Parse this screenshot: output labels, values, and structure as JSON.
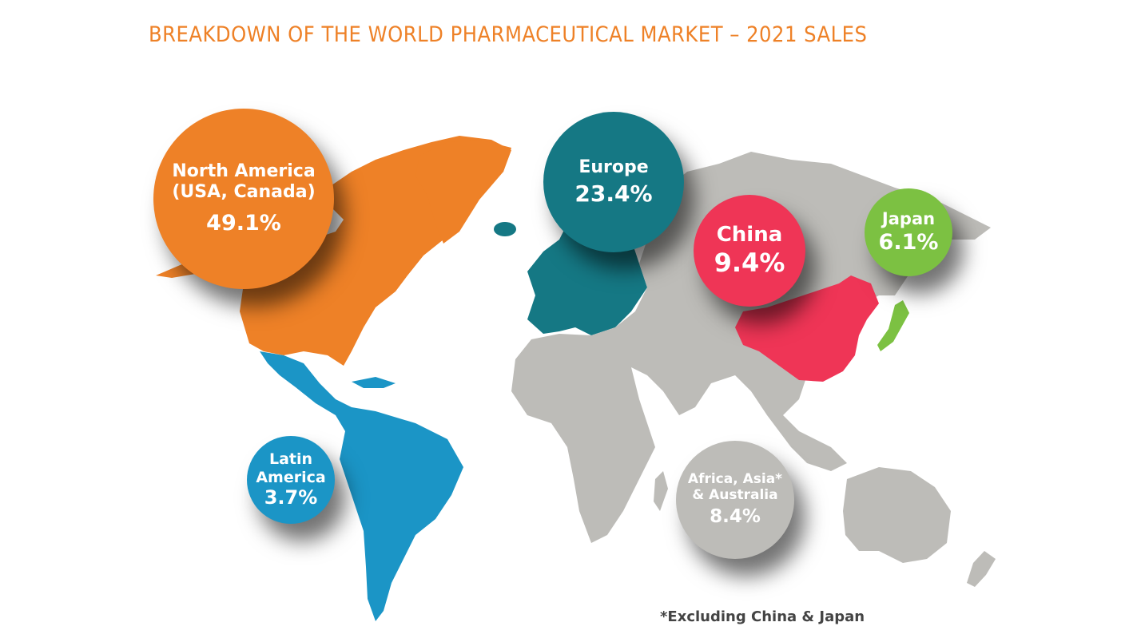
{
  "title": "BREAKDOWN OF THE WORLD PHARMACEUTICAL MARKET – 2021 SALES",
  "colors": {
    "title": "#ee8127",
    "north_america": "#ee8127",
    "europe": "#157884",
    "china": "#ef3556",
    "japan": "#7cc142",
    "latin_america": "#1b95c6",
    "rest_of_world": "#bdbcb8"
  },
  "regions": {
    "north_america": {
      "label_line1": "North America",
      "label_line2": "(USA, Canada)",
      "share": "49.1%"
    },
    "europe": {
      "label": "Europe",
      "share": "23.4%"
    },
    "china": {
      "label": "China",
      "share": "9.4%"
    },
    "japan": {
      "label": "Japan",
      "share": "6.1%"
    },
    "latin_america": {
      "label_line1": "Latin",
      "label_line2": "America",
      "share": "3.7%"
    },
    "rest_of_world": {
      "label_line1": "Africa, Asia*",
      "label_line2": "& Australia",
      "share": "8.4%"
    }
  },
  "footnote": "*Excluding China & Japan"
}
